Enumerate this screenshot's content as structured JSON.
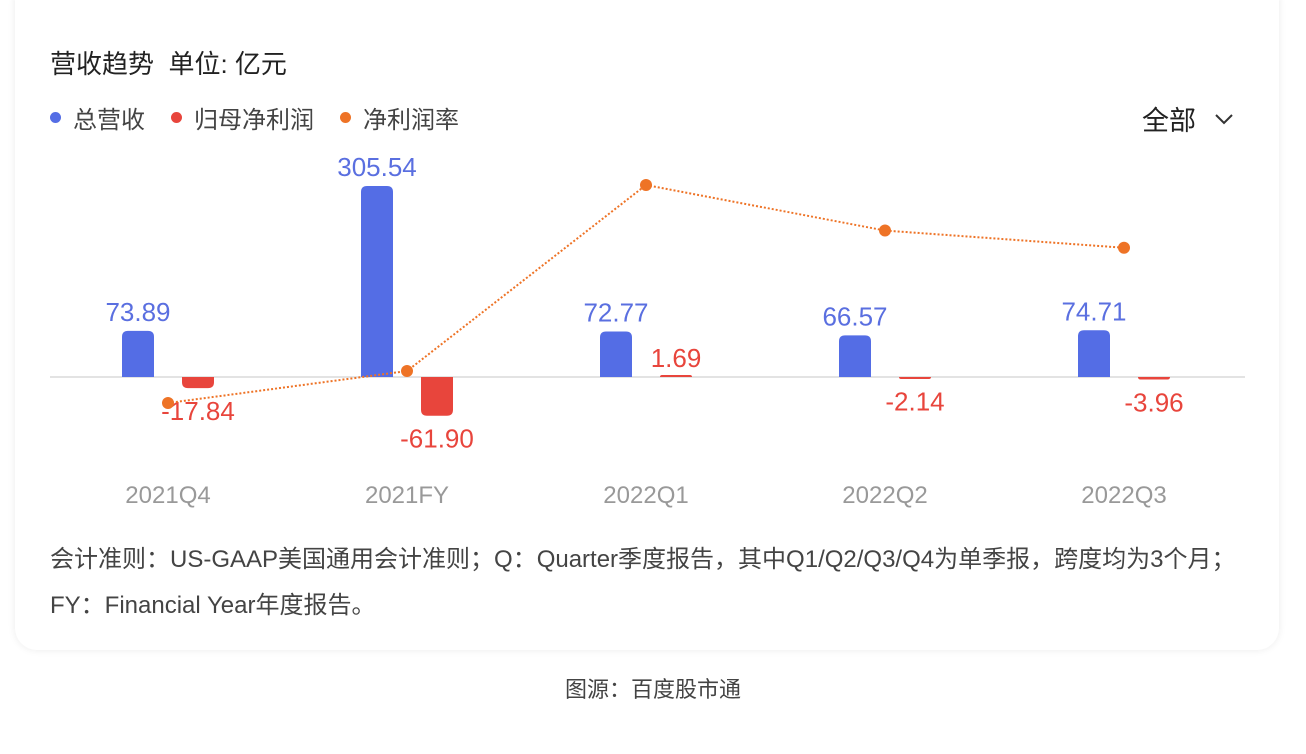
{
  "header": {
    "title": "营收趋势",
    "unit": "单位: 亿元",
    "filter_label": "全部",
    "filter_icon": "chevron-down-icon"
  },
  "chart_data": {
    "type": "bar",
    "categories": [
      "2021Q4",
      "2021FY",
      "2022Q1",
      "2022Q2",
      "2022Q3"
    ],
    "series": [
      {
        "name": "总营收",
        "type": "bar",
        "color": "#546de5",
        "label_color": "#5a6fe0",
        "values": [
          73.89,
          305.54,
          72.77,
          66.57,
          74.71
        ]
      },
      {
        "name": "归母净利润",
        "type": "bar",
        "color": "#e8453c",
        "label_color": "#e8453c",
        "values": [
          -17.84,
          -61.9,
          1.69,
          -2.14,
          -3.96
        ]
      },
      {
        "name": "净利润率",
        "type": "line",
        "style": "dotted",
        "color": "#ee7326",
        "unit": "%",
        "values": [
          -24.14,
          -20.26,
          2.32,
          -3.21,
          -5.3
        ]
      }
    ],
    "data_labels": {
      "0": [
        "73.89",
        "305.54",
        "72.77",
        "66.57",
        "74.71"
      ],
      "1": [
        "-17.84",
        "-61.90",
        "1.69",
        "-2.14",
        "-3.96"
      ]
    },
    "legend_position": "top-left",
    "grid": false
  },
  "footnote": "会计准则：US-GAAP美国通用会计准则；Q：Quarter季度报告，其中Q1/Q2/Q3/Q4为单季报，跨度均为3个月；FY：Financial Year年度报告。",
  "source": "图源：百度股市通"
}
